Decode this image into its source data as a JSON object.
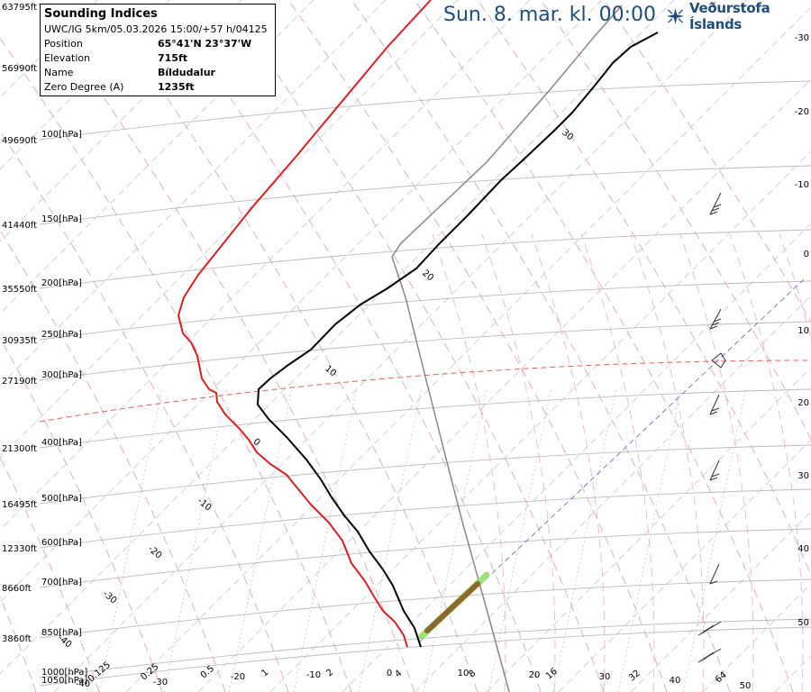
{
  "header": {
    "date": "Sun. 8. mar. kl. 00:00",
    "brand": "Veðurstofa Íslands",
    "logo_icon": "snowflake-star-icon"
  },
  "info_box": {
    "title": "Sounding Indices",
    "model_line": "UWC/IG 5km/05.03.2026 15:00/+57 h/04125",
    "rows": [
      {
        "key": "Position",
        "value": "65°41'N 23°37'W"
      },
      {
        "key": "Elevation",
        "value": "715ft"
      },
      {
        "key": "Name",
        "value": "Bíldudalur"
      },
      {
        "key": "Zero Degree (A)",
        "value": "1235ft"
      }
    ]
  },
  "chart_data": {
    "type": "line",
    "altitude_labels": [
      {
        "ft": "63795ft"
      },
      {
        "ft": "56990ft"
      },
      {
        "ft": "49690ft",
        "hpa": "100[hPa]"
      },
      {
        "ft": "41440ft",
        "hpa": "150[hPa]"
      },
      {
        "ft": "35550ft",
        "hpa": "200[hPa]"
      },
      {
        "ft": "30935ft",
        "hpa": "250[hPa]"
      },
      {
        "ft": "27190ft",
        "hpa": "300[hPa]"
      },
      {
        "ft": "21300ft",
        "hpa": "400[hPa]"
      },
      {
        "ft": "16495ft",
        "hpa": "500[hPa]"
      },
      {
        "ft": "12330ft",
        "hpa": "600[hPa]"
      },
      {
        "ft": "8660ft",
        "hpa": "700[hPa]"
      },
      {
        "ft": "3860ft",
        "hpa": "850[hPa]"
      },
      {
        "ft": "",
        "hpa": "1000[hPa]"
      },
      {
        "ft": "",
        "hpa": "1050[hPa]"
      }
    ],
    "right_axis_labels": [
      "-30",
      "-20",
      "-10",
      "0",
      "10",
      "20",
      "30",
      "40",
      "50"
    ],
    "bottom_temp_labels": [
      "-40",
      "-30",
      "-20",
      "-10",
      "0",
      "10",
      "20",
      "30",
      "40",
      "50"
    ],
    "mixing_ratio_labels": [
      "0.125",
      "0.25",
      "0.5",
      "1",
      "2",
      "4",
      "8",
      "16",
      "32",
      "64"
    ],
    "isotherm_labels": [
      "-40",
      "-30",
      "-20",
      "-10",
      "0",
      "10",
      "20",
      "30"
    ],
    "series": [
      {
        "name": "temperature",
        "color": "#000000"
      },
      {
        "name": "dewpoint",
        "color": "#d42020"
      },
      {
        "name": "parcel",
        "color": "#888888"
      }
    ],
    "colors": {
      "temperature": "#000000",
      "dewpoint": "#d42020",
      "parcel": "#888888",
      "isobar": "#bbbbbb",
      "dry_adiabat": "#d9a0b0",
      "moist_adiabat": "#c8c8c8",
      "mixing_ratio": "#b0b0dd",
      "zero_line": "#e06060",
      "surface_layer": "#8b6a2a"
    }
  }
}
